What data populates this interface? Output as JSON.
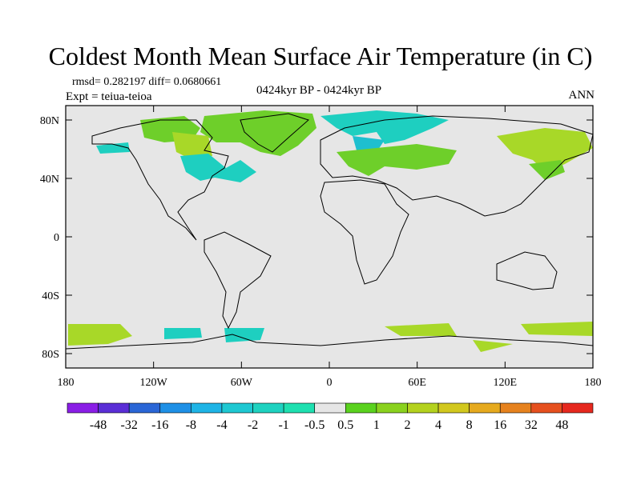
{
  "title": "Coldest Month Mean Surface Air Temperature (in C)",
  "stats_text": "rmsd= 0.282197 diff= 0.0680661",
  "experiment_text": "Expt = teiua-teioa",
  "period_text": "0424kyr BP - 0424kyr BP",
  "season_text": "ANN",
  "lat_labels": [
    "80N",
    "40N",
    "0",
    "40S",
    "80S"
  ],
  "lon_labels": [
    "180",
    "120W",
    "60W",
    "0",
    "60E",
    "120E",
    "180"
  ],
  "legend": {
    "labels": [
      "-48",
      "-32",
      "-16",
      "-8",
      "-4",
      "-2",
      "-1",
      "-0.5",
      "0.5",
      "1",
      "2",
      "4",
      "8",
      "16",
      "32",
      "48"
    ],
    "colors": [
      "#8a1ee6",
      "#5a2ed6",
      "#2a66d6",
      "#1e90e6",
      "#1eb4e6",
      "#1ec8d2",
      "#1ed2c0",
      "#1ee0b0",
      "#e6e6e6",
      "#5ad21e",
      "#8ad21e",
      "#b4d21e",
      "#d2c81e",
      "#e6aa1e",
      "#e6821e",
      "#e6501e",
      "#e6281e"
    ]
  },
  "colors": {
    "map_background": "#e6e6e6",
    "anomaly_green": "#6ecf2a",
    "anomaly_lightgreen": "#a8d828",
    "anomaly_cyan": "#1ecfc0",
    "anomaly_teal": "#1ebfcf"
  }
}
